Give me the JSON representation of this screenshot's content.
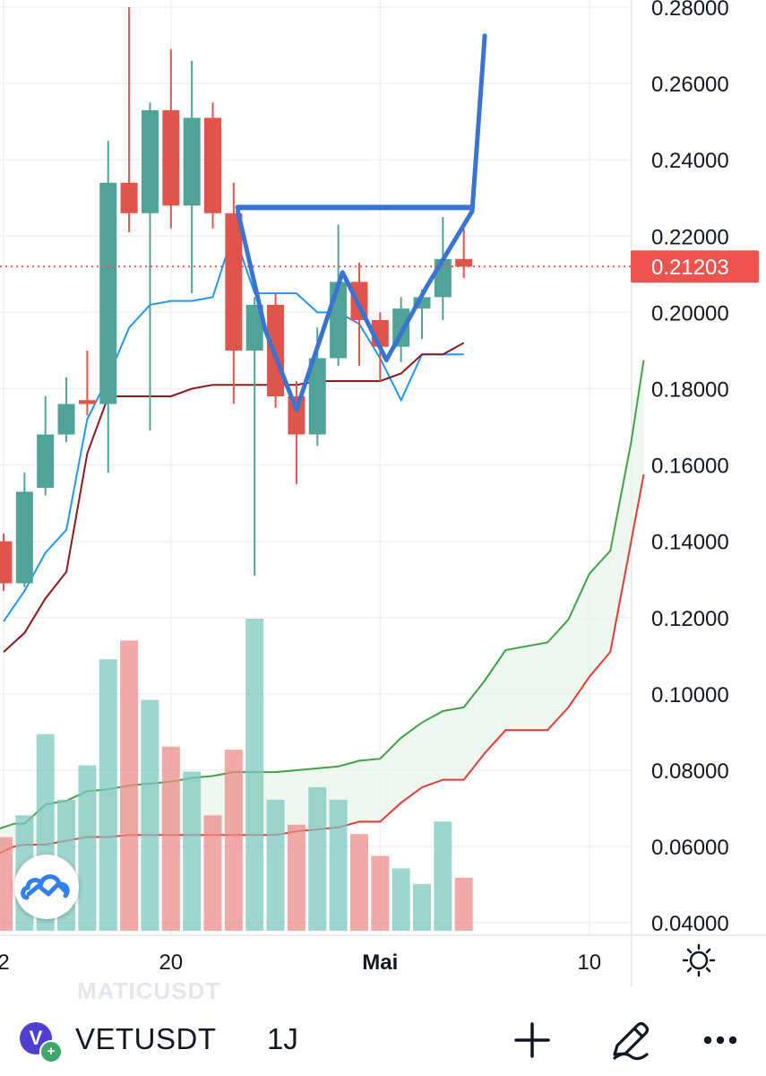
{
  "chart_data": {
    "type": "candlestick",
    "price_axis": {
      "ticks": [
        "0.28000",
        "0.26000",
        "0.24000",
        "0.22000",
        "0.20000",
        "0.18000",
        "0.16000",
        "0.14000",
        "0.12000",
        "0.10000",
        "0.08000",
        "0.06000",
        "0.04000"
      ],
      "range": [
        0.04,
        0.28
      ]
    },
    "time_axis": {
      "ticks": [
        {
          "label": "2",
          "day": 12
        },
        {
          "label": "20",
          "day": 20
        },
        {
          "label": "Mai",
          "day": 30,
          "bold": true
        },
        {
          "label": "10",
          "day": 40
        }
      ]
    },
    "current_price": {
      "value": 0.21203,
      "label": "0.21203",
      "color": "#ef5350"
    },
    "candles": [
      {
        "day": 12,
        "o": 0.14,
        "h": 0.142,
        "l": 0.127,
        "c": 0.129
      },
      {
        "day": 13,
        "o": 0.129,
        "h": 0.158,
        "l": 0.128,
        "c": 0.153
      },
      {
        "day": 14,
        "o": 0.154,
        "h": 0.178,
        "l": 0.152,
        "c": 0.168
      },
      {
        "day": 15,
        "o": 0.168,
        "h": 0.183,
        "l": 0.166,
        "c": 0.176
      },
      {
        "day": 16,
        "o": 0.177,
        "h": 0.19,
        "l": 0.173,
        "c": 0.176
      },
      {
        "day": 17,
        "o": 0.176,
        "h": 0.245,
        "l": 0.158,
        "c": 0.234
      },
      {
        "day": 18,
        "o": 0.234,
        "h": 0.28,
        "l": 0.221,
        "c": 0.226
      },
      {
        "day": 19,
        "o": 0.226,
        "h": 0.255,
        "l": 0.169,
        "c": 0.253
      },
      {
        "day": 20,
        "o": 0.253,
        "h": 0.269,
        "l": 0.222,
        "c": 0.228
      },
      {
        "day": 21,
        "o": 0.228,
        "h": 0.266,
        "l": 0.205,
        "c": 0.251
      },
      {
        "day": 22,
        "o": 0.251,
        "h": 0.255,
        "l": 0.222,
        "c": 0.226
      },
      {
        "day": 23,
        "o": 0.226,
        "h": 0.234,
        "l": 0.176,
        "c": 0.19
      },
      {
        "day": 24,
        "o": 0.19,
        "h": 0.204,
        "l": 0.131,
        "c": 0.202
      },
      {
        "day": 25,
        "o": 0.202,
        "h": 0.205,
        "l": 0.175,
        "c": 0.178
      },
      {
        "day": 26,
        "o": 0.178,
        "h": 0.182,
        "l": 0.155,
        "c": 0.168
      },
      {
        "day": 27,
        "o": 0.168,
        "h": 0.196,
        "l": 0.165,
        "c": 0.188
      },
      {
        "day": 28,
        "o": 0.188,
        "h": 0.223,
        "l": 0.186,
        "c": 0.208
      },
      {
        "day": 29,
        "o": 0.208,
        "h": 0.213,
        "l": 0.186,
        "c": 0.198
      },
      {
        "day": 30,
        "o": 0.198,
        "h": 0.2,
        "l": 0.182,
        "c": 0.191
      },
      {
        "day": 31,
        "o": 0.191,
        "h": 0.204,
        "l": 0.187,
        "c": 0.201
      },
      {
        "day": 32,
        "o": 0.201,
        "h": 0.206,
        "l": 0.193,
        "c": 0.204
      },
      {
        "day": 33,
        "o": 0.204,
        "h": 0.225,
        "l": 0.198,
        "c": 0.214
      },
      {
        "day": 34,
        "o": 0.214,
        "h": 0.222,
        "l": 0.209,
        "c": 0.212
      }
    ],
    "volume": [
      {
        "day": 12,
        "v": 0.3,
        "up": false
      },
      {
        "day": 13,
        "v": 0.37,
        "up": true
      },
      {
        "day": 14,
        "v": 0.63,
        "up": true
      },
      {
        "day": 15,
        "v": 0.42,
        "up": true
      },
      {
        "day": 16,
        "v": 0.53,
        "up": true
      },
      {
        "day": 17,
        "v": 0.87,
        "up": true
      },
      {
        "day": 18,
        "v": 0.93,
        "up": false
      },
      {
        "day": 19,
        "v": 0.74,
        "up": true
      },
      {
        "day": 20,
        "v": 0.59,
        "up": false
      },
      {
        "day": 21,
        "v": 0.51,
        "up": true
      },
      {
        "day": 22,
        "v": 0.37,
        "up": false
      },
      {
        "day": 23,
        "v": 0.58,
        "up": false
      },
      {
        "day": 24,
        "v": 1.0,
        "up": true
      },
      {
        "day": 25,
        "v": 0.42,
        "up": true
      },
      {
        "day": 26,
        "v": 0.34,
        "up": false
      },
      {
        "day": 27,
        "v": 0.46,
        "up": true
      },
      {
        "day": 28,
        "v": 0.42,
        "up": true
      },
      {
        "day": 29,
        "v": 0.31,
        "up": false
      },
      {
        "day": 30,
        "v": 0.24,
        "up": false
      },
      {
        "day": 31,
        "v": 0.2,
        "up": true
      },
      {
        "day": 32,
        "v": 0.15,
        "up": true
      },
      {
        "day": 33,
        "v": 0.35,
        "up": true
      },
      {
        "day": 34,
        "v": 0.17,
        "up": false
      }
    ],
    "lines": [
      {
        "name": "fast",
        "color": "#2196f3",
        "width": 2,
        "points": [
          [
            12,
            0.119
          ],
          [
            13,
            0.127
          ],
          [
            14,
            0.137
          ],
          [
            15,
            0.143
          ],
          [
            16,
            0.172
          ],
          [
            17,
            0.183
          ],
          [
            18,
            0.196
          ],
          [
            19,
            0.202
          ],
          [
            20,
            0.203
          ],
          [
            21,
            0.203
          ],
          [
            22,
            0.204
          ],
          [
            23,
            0.221
          ],
          [
            24,
            0.205
          ],
          [
            25,
            0.205
          ],
          [
            26,
            0.205
          ],
          [
            27,
            0.2
          ],
          [
            28,
            0.2
          ],
          [
            29,
            0.197
          ],
          [
            30,
            0.188
          ],
          [
            31,
            0.177
          ],
          [
            32,
            0.189
          ],
          [
            33,
            0.189
          ],
          [
            34,
            0.189
          ]
        ]
      },
      {
        "name": "slow",
        "color": "#8b1a1a",
        "width": 2,
        "points": [
          [
            12,
            0.111
          ],
          [
            13,
            0.116
          ],
          [
            14,
            0.125
          ],
          [
            15,
            0.132
          ],
          [
            16,
            0.163
          ],
          [
            17,
            0.178
          ],
          [
            18,
            0.178
          ],
          [
            19,
            0.178
          ],
          [
            20,
            0.178
          ],
          [
            21,
            0.18
          ],
          [
            22,
            0.181
          ],
          [
            23,
            0.181
          ],
          [
            24,
            0.181
          ],
          [
            25,
            0.181
          ],
          [
            26,
            0.181
          ],
          [
            27,
            0.182
          ],
          [
            28,
            0.182
          ],
          [
            29,
            0.182
          ],
          [
            30,
            0.182
          ],
          [
            31,
            0.184
          ],
          [
            32,
            0.189
          ],
          [
            33,
            0.189
          ],
          [
            34,
            0.192
          ]
        ]
      }
    ],
    "cloud": {
      "upper": {
        "color": "#43a047",
        "points": [
          [
            11.7,
            0.0645
          ],
          [
            12.5,
            0.066
          ],
          [
            13,
            0.066
          ],
          [
            14,
            0.071
          ],
          [
            15,
            0.072
          ],
          [
            16,
            0.0745
          ],
          [
            17,
            0.075
          ],
          [
            18,
            0.076
          ],
          [
            19,
            0.0765
          ],
          [
            20,
            0.077
          ],
          [
            21,
            0.078
          ],
          [
            22,
            0.0785
          ],
          [
            23,
            0.0795
          ],
          [
            24,
            0.0795
          ],
          [
            25,
            0.0795
          ],
          [
            26,
            0.08
          ],
          [
            27,
            0.0805
          ],
          [
            28,
            0.081
          ],
          [
            29,
            0.0825
          ],
          [
            30,
            0.083
          ],
          [
            31,
            0.0885
          ],
          [
            32,
            0.0925
          ],
          [
            33,
            0.0955
          ],
          [
            34,
            0.0965
          ],
          [
            35,
            0.1035
          ],
          [
            36,
            0.1115
          ],
          [
            37,
            0.1125
          ],
          [
            38,
            0.1135
          ],
          [
            39,
            0.1195
          ],
          [
            40,
            0.1315
          ],
          [
            41,
            0.1375
          ],
          [
            42,
            0.166
          ],
          [
            42.6,
            0.1875
          ]
        ]
      },
      "lower": {
        "color": "#e53935",
        "points": [
          [
            11.7,
            0.058
          ],
          [
            12.5,
            0.06
          ],
          [
            13,
            0.0605
          ],
          [
            14,
            0.0605
          ],
          [
            15,
            0.0615
          ],
          [
            16,
            0.0625
          ],
          [
            17,
            0.0625
          ],
          [
            18,
            0.063
          ],
          [
            19,
            0.063
          ],
          [
            20,
            0.063
          ],
          [
            21,
            0.063
          ],
          [
            22,
            0.063
          ],
          [
            23,
            0.063
          ],
          [
            24,
            0.063
          ],
          [
            25,
            0.063
          ],
          [
            26,
            0.064
          ],
          [
            27,
            0.0645
          ],
          [
            28,
            0.065
          ],
          [
            29,
            0.0665
          ],
          [
            30,
            0.0665
          ],
          [
            31,
            0.0715
          ],
          [
            32,
            0.0755
          ],
          [
            33,
            0.0775
          ],
          [
            34,
            0.0775
          ],
          [
            35,
            0.0845
          ],
          [
            36,
            0.0905
          ],
          [
            37,
            0.0905
          ],
          [
            38,
            0.0905
          ],
          [
            39,
            0.0965
          ],
          [
            40,
            0.1045
          ],
          [
            41,
            0.111
          ],
          [
            42,
            0.14
          ],
          [
            42.6,
            0.1575
          ]
        ]
      }
    },
    "drawing": {
      "color": "#3b73d1",
      "neckline": [
        [
          23.2,
          0.2275
        ],
        [
          34.4,
          0.2275
        ]
      ],
      "path": [
        [
          23.2,
          0.2265
        ],
        [
          24.5,
          0.1955
        ],
        [
          26,
          0.1745
        ],
        [
          28.2,
          0.2105
        ],
        [
          30.3,
          0.1875
        ],
        [
          32.2,
          0.2065
        ],
        [
          34.4,
          0.2265
        ],
        [
          35,
          0.2725
        ]
      ]
    }
  },
  "bottom_bar": {
    "watermark": "MATICUSDT",
    "symbol": "VETUSDT",
    "interval": "1J",
    "coin_logo_letter": "V",
    "coin_logo_badge": "+"
  },
  "icons": {
    "settings": "gear-icon",
    "add": "plus-icon",
    "draw": "pencil-icon",
    "more": "ellipsis-icon",
    "logo": "cloud-chart-logo-icon"
  }
}
